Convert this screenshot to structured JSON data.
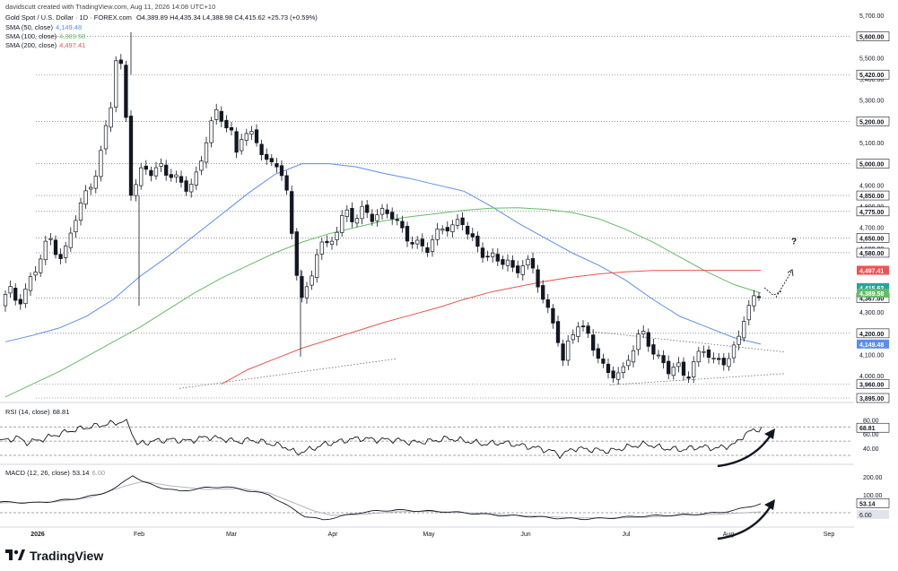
{
  "header": {
    "creator": "davidscutt created with TradingView.com, Aug 11, 2026 14:08 UTC+10",
    "symbol": "Gold Spot / U.S. Dollar · 1D · FOREX.com",
    "ohlc": "O4,389.89 H4,435.34 L4,388.98 C4,415.62 +25.73 (+0.59%)",
    "sma50_label": "SMA (50, close)",
    "sma50_value": "4,149.48",
    "sma100_label": "SMA (100, close)",
    "sma100_value": "4,389.58",
    "sma200_label": "SMA (200, close)",
    "sma200_value": "4,497.41",
    "rsi_label": "RSI (14, close)",
    "rsi_value": "68.81",
    "macd_label": "MACD (12, 26, close)",
    "macd_value": "53.14",
    "macd_signal_value": "6.00"
  },
  "brand": "TradingView",
  "colors": {
    "up": "#ffffff",
    "down": "#131722",
    "sma50": "#5b8def",
    "sma100": "#66bb6a",
    "sma200": "#ef5350",
    "last_price": "#26a69a",
    "level": "#333333"
  },
  "chart_data": [
    {
      "type": "candlestick",
      "title": "Gold Spot / U.S. Dollar · 1D · FOREX.com",
      "x_tick_labels": [
        "2026",
        "Feb",
        "Mar",
        "Apr",
        "May",
        "Jun",
        "Jul",
        "Aug",
        "Sep"
      ],
      "y_tick_labels": [
        "5,700.00",
        "5,600.00",
        "5,500.00",
        "5,400.00",
        "5,300.00",
        "5,200.00",
        "5,100.00",
        "5,000.00",
        "4,900.00",
        "4,800.00",
        "4,700.00",
        "4,600.00",
        "4,500.00",
        "4,400.00",
        "4,300.00",
        "4,200.00",
        "4,100.00",
        "4,000.00",
        "3,900.00"
      ],
      "ylim": [
        3870,
        5710
      ],
      "horizontal_levels": [
        "5,600.00",
        "5,420.00",
        "5,200.00",
        "5,000.00",
        "4,850.00",
        "4,775.00",
        "4,650.00",
        "4,580.00",
        "4,367.00",
        "4,200.00",
        "3,960.00",
        "3,895.00"
      ],
      "badges": [
        {
          "text": "4,497.41",
          "price": 4497.41,
          "color": "#ef5350"
        },
        {
          "text": "4,415.62",
          "price": 4415.62,
          "color": "#26a69a"
        },
        {
          "text": "4,389.58",
          "price": 4389.58,
          "color": "#66bb6a"
        },
        {
          "text": "4,149.48",
          "price": 4149.48,
          "color": "#5b8def"
        }
      ],
      "annotation": "?",
      "series": [
        {
          "name": "SMA (50, close)",
          "values": [
            4160,
            4190,
            4225,
            4280,
            4360,
            4470,
            4560,
            4660,
            4760,
            4860,
            4950,
            5000,
            5000,
            4985,
            4955,
            4930,
            4900,
            4870,
            4800,
            4720,
            4650,
            4580,
            4520,
            4450,
            4360,
            4280,
            4230,
            4180,
            4149
          ]
        },
        {
          "name": "SMA (100, close)",
          "values": [
            3900,
            3960,
            4020,
            4090,
            4160,
            4230,
            4310,
            4390,
            4460,
            4520,
            4580,
            4630,
            4670,
            4700,
            4730,
            4750,
            4765,
            4780,
            4790,
            4792,
            4785,
            4770,
            4740,
            4690,
            4630,
            4560,
            4490,
            4430,
            4390
          ]
        },
        {
          "name": "SMA (200, close)",
          "values": [
            null,
            null,
            null,
            null,
            null,
            null,
            null,
            null,
            3960,
            4030,
            4080,
            4130,
            4170,
            4210,
            4250,
            4285,
            4320,
            4360,
            4395,
            4420,
            4445,
            4465,
            4480,
            4490,
            4496,
            4497,
            4497,
            4497,
            4497
          ]
        }
      ]
    },
    {
      "type": "line",
      "title": "RSI (14, close)",
      "y_tick_labels": [
        "80.00",
        "60.00",
        "40.00"
      ],
      "ylim": [
        25,
        90
      ],
      "guides": [
        70,
        50,
        30
      ],
      "last_value": "68.81"
    },
    {
      "type": "line",
      "title": "MACD (12, 26, close)",
      "y_tick_labels": [
        "200.00",
        "100.00"
      ],
      "ylim": [
        -60,
        240
      ],
      "series": [
        {
          "name": "MACD",
          "last": "53.14"
        },
        {
          "name": "Signal",
          "last": "6.00"
        }
      ]
    }
  ]
}
